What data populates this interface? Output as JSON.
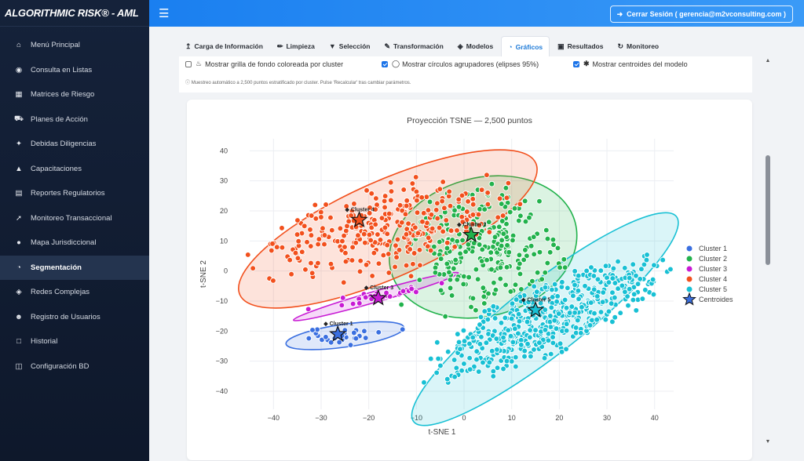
{
  "brand": "ALGORITHMIC RISK® - AML",
  "header": {
    "logout": "Cerrar Sesión ( gerencia@m2vconsulting.com )"
  },
  "sidebar": {
    "items": [
      {
        "label": "Menú Principal",
        "icon": "home-icon"
      },
      {
        "label": "Consulta en Listas",
        "icon": "robot-icon"
      },
      {
        "label": "Matrices de Riesgo",
        "icon": "table-icon"
      },
      {
        "label": "Planes de Acción",
        "icon": "truck-icon"
      },
      {
        "label": "Debidas Diligencias",
        "icon": "person-icon"
      },
      {
        "label": "Capacitaciones",
        "icon": "graduation-cap-icon"
      },
      {
        "label": "Reportes Regulatorios",
        "icon": "bank-icon"
      },
      {
        "label": "Monitoreo Transaccional",
        "icon": "line-chart-icon"
      },
      {
        "label": "Mapa Jurisdiccional",
        "icon": "globe-icon"
      },
      {
        "label": "Segmentación",
        "icon": "pie-chart-icon",
        "active": true
      },
      {
        "label": "Redes Complejas",
        "icon": "network-icon"
      },
      {
        "label": "Registro de Usuarios",
        "icon": "users-icon"
      },
      {
        "label": "Historial",
        "icon": "document-icon"
      },
      {
        "label": "Configuración BD",
        "icon": "database-icon"
      }
    ]
  },
  "tabs": [
    {
      "label": "Carga de Información",
      "icon": "upload-icon"
    },
    {
      "label": "Limpieza",
      "icon": "brush-icon"
    },
    {
      "label": "Selección",
      "icon": "filter-icon"
    },
    {
      "label": "Transformación",
      "icon": "pencil-icon"
    },
    {
      "label": "Modelos",
      "icon": "network-icon"
    },
    {
      "label": "Gráficos",
      "icon": "pie-chart-icon",
      "active": true
    },
    {
      "label": "Resultados",
      "icon": "clipboard-icon"
    },
    {
      "label": "Monitoreo",
      "icon": "refresh-icon"
    }
  ],
  "options": {
    "grid": {
      "label": "Mostrar grilla de fondo coloreada por cluster",
      "checked": false
    },
    "circles": {
      "label": "Mostrar círculos agrupadores (elipses 95%)",
      "checked": true
    },
    "centroids": {
      "label": "Mostrar centroides del modelo",
      "checked": true
    },
    "note": "Muestreo automático a 2,500 puntos estratificado por cluster. Pulse 'Recalcular' tras cambiar parámetros."
  },
  "chart_data": {
    "type": "scatter",
    "title": "Proyección TSNE — 2,500 puntos",
    "xlabel": "t-SNE 1",
    "ylabel": "t-SNE 2",
    "xlim": [
      -45,
      44
    ],
    "ylim": [
      -46,
      44
    ],
    "xticks": [
      -40,
      -30,
      -20,
      -10,
      0,
      10,
      20,
      30,
      40
    ],
    "yticks": [
      -40,
      -30,
      -20,
      -10,
      0,
      10,
      20,
      30,
      40
    ],
    "grid": true,
    "legend": "right",
    "series": [
      {
        "name": "Cluster 1",
        "color": "#3a6fe0",
        "centroid": [
          -26.5,
          -21
        ],
        "centroid_label": "Cluster 1"
      },
      {
        "name": "Cluster 2",
        "color": "#22b24c",
        "centroid": [
          1.5,
          12
        ],
        "centroid_label": "Cluster 2"
      },
      {
        "name": "Cluster 3",
        "color": "#c81ad4",
        "centroid": [
          -18,
          -9
        ],
        "centroid_label": "Cluster 3"
      },
      {
        "name": "Cluster 4",
        "color": "#f2501d",
        "centroid": [
          -22,
          17
        ],
        "centroid_label": "Cluster 4"
      },
      {
        "name": "Cluster 5",
        "color": "#18c0d4",
        "centroid": [
          15,
          -13
        ],
        "centroid_label": "Cluster 5"
      }
    ],
    "ellipses": [
      {
        "series": 0,
        "cx": -25,
        "cy": -21.5,
        "rx": 12.5,
        "ry": 3.8,
        "angle": -8
      },
      {
        "series": 1,
        "cx": 4,
        "cy": 8,
        "rx": 20,
        "ry": 23,
        "angle": -15
      },
      {
        "series": 2,
        "cx": -18.5,
        "cy": -8.5,
        "rx": 18,
        "ry": 1.8,
        "angle": -16
      },
      {
        "series": 3,
        "cx": -16,
        "cy": 14,
        "rx": 34,
        "ry": 16,
        "angle": -24
      },
      {
        "series": 4,
        "cx": 17,
        "cy": -16,
        "rx": 35,
        "ry": 12,
        "angle": -38
      }
    ],
    "centroid_legend": "Centroides"
  }
}
